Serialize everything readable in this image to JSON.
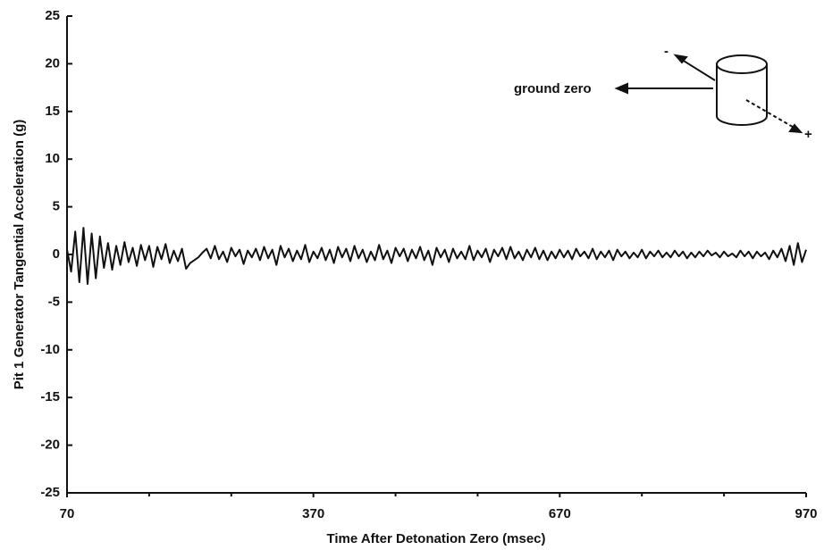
{
  "chart_data": {
    "type": "line",
    "ylabel": "Pit 1 Generator Tangential Acceleration (g)",
    "xlabel": "Time After Detonation Zero (msec)",
    "xlim": [
      70,
      970
    ],
    "xticks": [
      70,
      370,
      670,
      970
    ],
    "x_minor_ticks": [
      170,
      270,
      470,
      570,
      770,
      870
    ],
    "ylim": [
      -25,
      25
    ],
    "yticks": [
      -25,
      -20,
      -15,
      -10,
      -5,
      0,
      5,
      10,
      15,
      20,
      25
    ],
    "color": "#111111",
    "annotations": [
      {
        "text": "ground zero"
      },
      {
        "text": "-"
      },
      {
        "text": "+"
      }
    ],
    "x": [
      70,
      75,
      80,
      85,
      90,
      95,
      100,
      105,
      110,
      115,
      120,
      125,
      130,
      135,
      140,
      145,
      150,
      155,
      160,
      165,
      170,
      175,
      180,
      185,
      190,
      195,
      200,
      205,
      210,
      215,
      220,
      225,
      230,
      235,
      240,
      245,
      250,
      255,
      260,
      265,
      270,
      275,
      280,
      285,
      290,
      295,
      300,
      305,
      310,
      315,
      320,
      325,
      330,
      335,
      340,
      345,
      350,
      355,
      360,
      365,
      370,
      375,
      380,
      385,
      390,
      395,
      400,
      405,
      410,
      415,
      420,
      425,
      430,
      435,
      440,
      445,
      450,
      455,
      460,
      465,
      470,
      475,
      480,
      485,
      490,
      495,
      500,
      505,
      510,
      515,
      520,
      525,
      530,
      535,
      540,
      545,
      550,
      555,
      560,
      565,
      570,
      575,
      580,
      585,
      590,
      595,
      600,
      605,
      610,
      615,
      620,
      625,
      630,
      635,
      640,
      645,
      650,
      655,
      660,
      665,
      670,
      675,
      680,
      685,
      690,
      695,
      700,
      705,
      710,
      715,
      720,
      725,
      730,
      735,
      740,
      745,
      750,
      755,
      760,
      765,
      770,
      775,
      780,
      785,
      790,
      795,
      800,
      805,
      810,
      815,
      820,
      825,
      830,
      835,
      840,
      845,
      850,
      855,
      860,
      865,
      870,
      875,
      880,
      885,
      890,
      895,
      900,
      905,
      910,
      915,
      920,
      925,
      930,
      935,
      940,
      945,
      950,
      955,
      960,
      965,
      970
    ],
    "values": [
      0.5,
      -1.8,
      2.4,
      -2.9,
      2.8,
      -3.1,
      2.2,
      -2.5,
      1.9,
      -1.4,
      1.2,
      -1.6,
      0.9,
      -1.1,
      1.3,
      -0.8,
      0.7,
      -1.2,
      1.0,
      -0.6,
      0.9,
      -1.3,
      0.8,
      -0.5,
      1.1,
      -0.9,
      0.4,
      -0.7,
      0.6,
      -1.5,
      -0.9,
      -0.6,
      -0.3,
      0.2,
      0.6,
      -0.4,
      0.9,
      -0.5,
      0.3,
      -0.8,
      0.7,
      -0.2,
      0.5,
      -1.0,
      0.4,
      -0.3,
      0.6,
      -0.6,
      0.8,
      -0.4,
      0.5,
      -1.1,
      0.9,
      -0.3,
      0.6,
      -0.7,
      0.4,
      -0.5,
      1.0,
      -0.8,
      0.3,
      -0.4,
      0.7,
      -0.6,
      0.5,
      -0.9,
      0.8,
      -0.3,
      0.6,
      -0.7,
      0.9,
      -0.4,
      0.5,
      -0.8,
      0.3,
      -0.6,
      1.0,
      -0.5,
      0.4,
      -0.9,
      0.7,
      -0.2,
      0.6,
      -0.7,
      0.5,
      -0.4,
      0.8,
      -0.6,
      0.4,
      -1.1,
      0.7,
      -0.3,
      0.5,
      -0.8,
      0.6,
      -0.4,
      0.3,
      -0.5,
      0.9,
      -0.6,
      0.4,
      -0.3,
      0.6,
      -0.8,
      0.5,
      -0.2,
      0.7,
      -0.5,
      0.8,
      -0.4,
      0.3,
      -0.6,
      0.5,
      -0.3,
      0.7,
      -0.5,
      0.4,
      -0.6,
      0.3,
      -0.4,
      0.5,
      -0.3,
      0.4,
      -0.5,
      0.6,
      -0.2,
      0.3,
      -0.4,
      0.6,
      -0.5,
      0.3,
      -0.3,
      0.4,
      -0.6,
      0.5,
      -0.2,
      0.3,
      -0.4,
      0.2,
      -0.3,
      0.5,
      -0.4,
      0.3,
      -0.2,
      0.4,
      -0.3,
      0.2,
      -0.3,
      0.4,
      -0.2,
      0.3,
      -0.4,
      0.2,
      -0.3,
      0.3,
      -0.2,
      0.4,
      -0.1,
      0.2,
      -0.3,
      0.3,
      -0.2,
      0.1,
      -0.3,
      0.4,
      -0.2,
      0.3,
      -0.4,
      0.3,
      -0.2,
      0.2,
      -0.5,
      0.4,
      -0.3,
      0.6,
      -0.7,
      0.9,
      -1.1,
      1.2,
      -0.8,
      0.5
    ]
  }
}
